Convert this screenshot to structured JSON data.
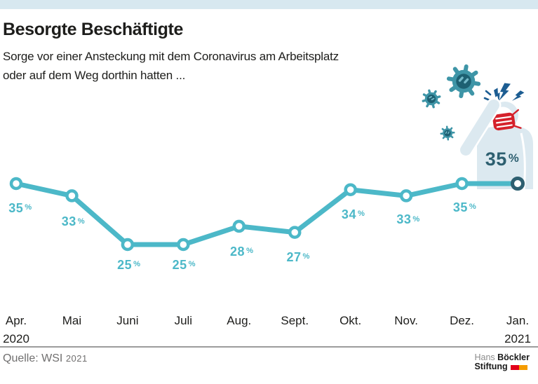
{
  "header": {
    "title": "Besorgte Beschäftigte",
    "subtitle_line1": "Sorge vor einer Ansteckung mit dem Coronavirus am Arbeitsplatz",
    "subtitle_line2": "oder auf dem Weg dorthin hatten ..."
  },
  "chart_data": {
    "type": "line",
    "title": "Besorgte Beschäftigte",
    "subtitle": "Sorge vor einer Ansteckung mit dem Coronavirus am Arbeitsplatz oder auf dem Weg dorthin hatten ...",
    "categories": [
      "Apr.",
      "Mai",
      "Juni",
      "Juli",
      "Aug.",
      "Sept.",
      "Okt.",
      "Nov.",
      "Dez.",
      "Jan."
    ],
    "year_labels": [
      {
        "index": 0,
        "label": "2020"
      },
      {
        "index": 9,
        "label": "2021"
      }
    ],
    "values": [
      35,
      33,
      25,
      25,
      28,
      27,
      34,
      33,
      35,
      35
    ],
    "labels": [
      "35 %",
      "33 %",
      "25 %",
      "25 %",
      "28 %",
      "27 %",
      "34 %",
      "33 %",
      "35 %",
      "35 %"
    ],
    "unit": "%",
    "ylim": [
      20,
      40
    ],
    "grid": false,
    "legend": false,
    "line_color": "#4cb8c8",
    "final_color": "#2d5f70"
  },
  "icons": {
    "virus": "virus-icon",
    "lightning": "lightning-icon",
    "person": "worried-person-icon",
    "mask": "face-mask-icon"
  },
  "source": {
    "label": "Quelle: WSI",
    "year": "2021"
  },
  "logo": {
    "line1_light": "Hans",
    "line1_bold": "Böckler",
    "line2_bold": "Stiftung"
  },
  "colors": {
    "accent": "#4cb8c8",
    "dark_teal": "#2d5f70",
    "mask_red": "#d5212b",
    "bolt_blue": "#1c5d92",
    "virus_teal": "#3e95a7",
    "virus_dark": "#1d6072",
    "figure_blue": "#dce9f0",
    "header_strip": "#d7e8f0",
    "text": "#1d1d1b",
    "source_gray": "#706f6f",
    "divider_gray": "#9c9c9c",
    "logo_red": "#e2001a",
    "logo_orange": "#f59c00"
  }
}
